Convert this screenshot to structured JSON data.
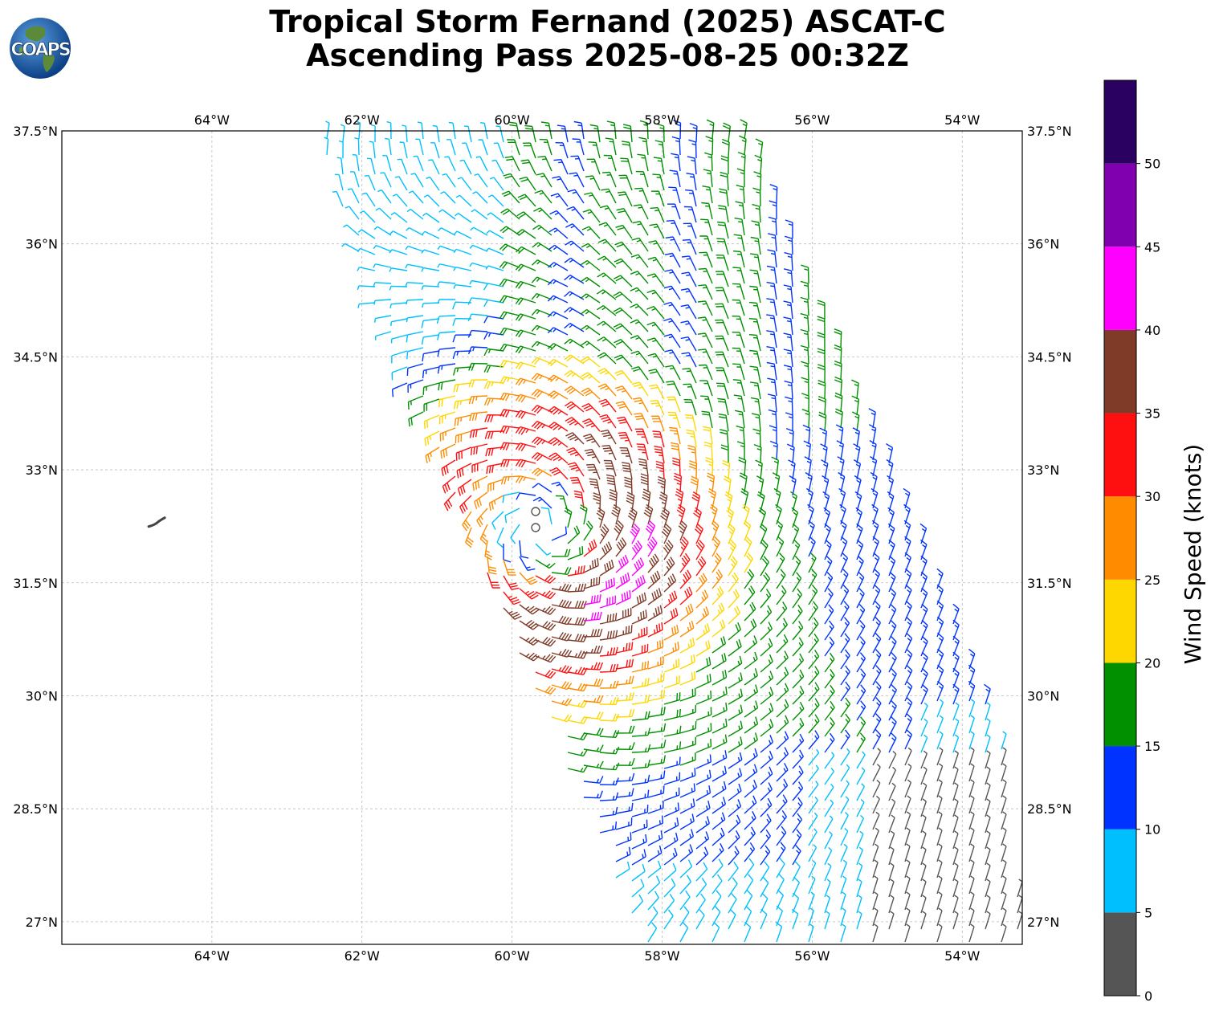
{
  "title": {
    "line1": "Tropical Storm Fernand (2025) ASCAT-C",
    "line2": "Ascending Pass 2025-08-25 00:32Z"
  },
  "logo": {
    "text": "COAPS",
    "ocean_color": "#1f5fa8",
    "land_color": "#5a8a3a"
  },
  "map": {
    "lon_range": [
      -66,
      -53.2
    ],
    "lat_range": [
      26.7,
      37.5
    ],
    "lon_ticks": [
      {
        "value": -64,
        "label": "64°W"
      },
      {
        "value": -62,
        "label": "62°W"
      },
      {
        "value": -60,
        "label": "60°W"
      },
      {
        "value": -58,
        "label": "58°W"
      },
      {
        "value": -56,
        "label": "56°W"
      },
      {
        "value": -54,
        "label": "54°W"
      }
    ],
    "lat_ticks": [
      {
        "value": 37.5,
        "label": "37.5°N"
      },
      {
        "value": 36,
        "label": "36°N"
      },
      {
        "value": 34.5,
        "label": "34.5°N"
      },
      {
        "value": 33,
        "label": "33°N"
      },
      {
        "value": 31.5,
        "label": "31.5°N"
      },
      {
        "value": 30,
        "label": "30°N"
      },
      {
        "value": 28.5,
        "label": "28.5°N"
      },
      {
        "value": 27,
        "label": "27°N"
      }
    ],
    "grid": true,
    "storm_center": {
      "lon": -59.6,
      "lat": 32.2
    },
    "swath_corners": [
      {
        "lon": -62.6,
        "lat": 37.5
      },
      {
        "lon": -56.8,
        "lat": 37.5
      },
      {
        "lon": -53.4,
        "lat": 29.3
      },
      {
        "lon": -53.2,
        "lat": 26.7
      },
      {
        "lon": -58.3,
        "lat": 26.7
      },
      {
        "lon": -62.0,
        "lat": 35.6
      }
    ],
    "island": {
      "name": "Bermuda",
      "lon": -64.8,
      "lat": 32.3
    }
  },
  "colorbar": {
    "label": "Wind Speed (knots)",
    "ticks": [
      "0",
      "5",
      "10",
      "15",
      "20",
      "25",
      "30",
      "35",
      "40",
      "45",
      "50"
    ],
    "bins": [
      {
        "min": 0,
        "max": 5,
        "color": "#555555"
      },
      {
        "min": 5,
        "max": 10,
        "color": "#00bfff"
      },
      {
        "min": 10,
        "max": 15,
        "color": "#0033ff"
      },
      {
        "min": 15,
        "max": 20,
        "color": "#009000"
      },
      {
        "min": 20,
        "max": 25,
        "color": "#ffd700"
      },
      {
        "min": 25,
        "max": 30,
        "color": "#ff8c00"
      },
      {
        "min": 30,
        "max": 35,
        "color": "#ff1010"
      },
      {
        "min": 35,
        "max": 40,
        "color": "#7f3a28"
      },
      {
        "min": 40,
        "max": 45,
        "color": "#ff00ff"
      },
      {
        "min": 45,
        "max": 50,
        "color": "#8000b0"
      },
      {
        "min": 50,
        "max": 55,
        "color": "#2a0060"
      }
    ]
  }
}
